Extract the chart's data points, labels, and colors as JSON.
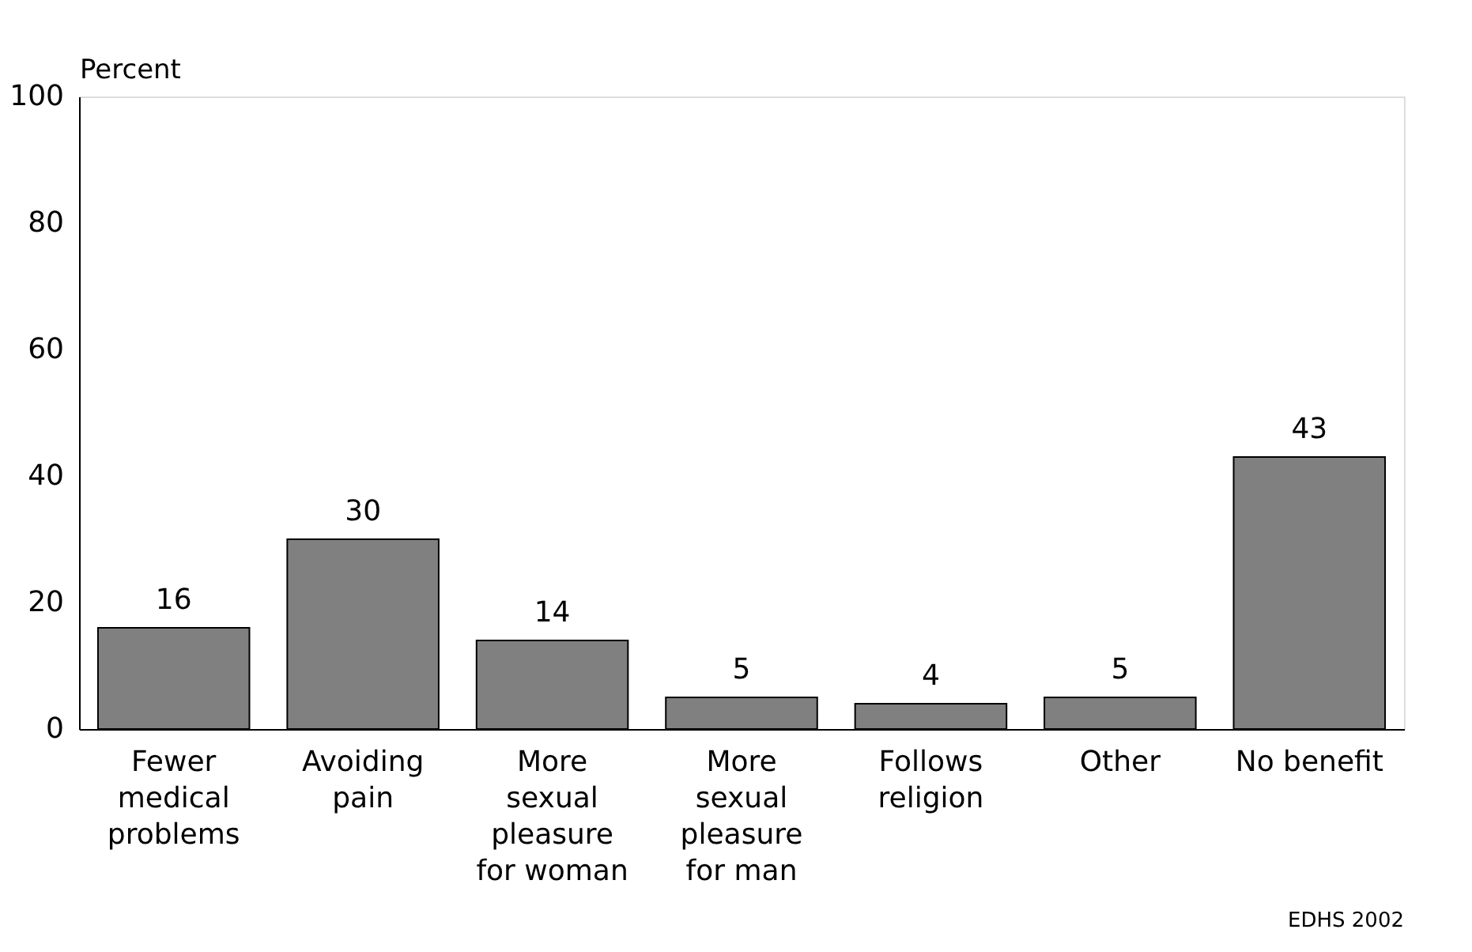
{
  "chart_data": {
    "type": "bar",
    "categories": [
      "Fewer\nmedical\nproblems",
      "Avoiding\npain",
      "More\nsexual\npleasure\nfor woman",
      "More\nsexual\npleasure\nfor man",
      "Follows\nreligion",
      "Other",
      "No benefit"
    ],
    "values": [
      16,
      30,
      14,
      5,
      4,
      5,
      43
    ],
    "color": "#808080",
    "ylabel": "Percent",
    "ylim": [
      0,
      100
    ],
    "yticks": [
      0,
      20,
      40,
      60,
      80,
      100
    ],
    "grid": false,
    "data_labels": true,
    "annotations": [
      "EDHS 2002"
    ]
  }
}
